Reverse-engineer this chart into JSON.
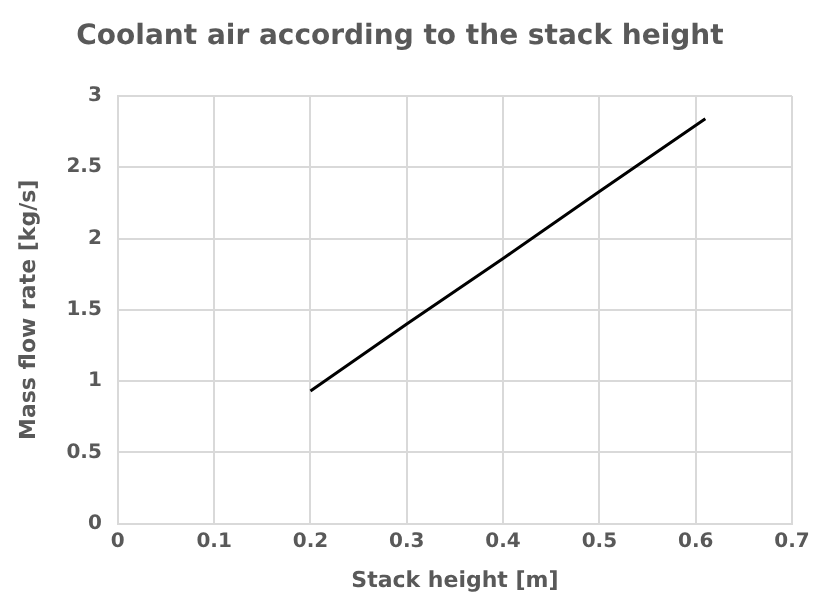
{
  "chart_data": {
    "type": "line",
    "title": "Coolant air according to the stack height",
    "xlabel": "Stack height [m]",
    "ylabel": "Mass flow rate [kg/s]",
    "x": [
      0.2,
      0.3,
      0.4,
      0.5,
      0.61
    ],
    "series": [
      {
        "color": "#000000",
        "values": [
          0.93,
          1.4,
          1.86,
          2.33,
          2.84
        ]
      }
    ],
    "xlim": [
      0,
      0.7
    ],
    "xticks": [
      0,
      0.1,
      0.2,
      0.3,
      0.4,
      0.5,
      0.6,
      0.7
    ],
    "ylim": [
      0,
      3
    ],
    "yticks": [
      0,
      0.5,
      1,
      1.5,
      2,
      2.5,
      3
    ],
    "grid": true,
    "legend": false,
    "marker": "none",
    "line_style": "solid"
  }
}
